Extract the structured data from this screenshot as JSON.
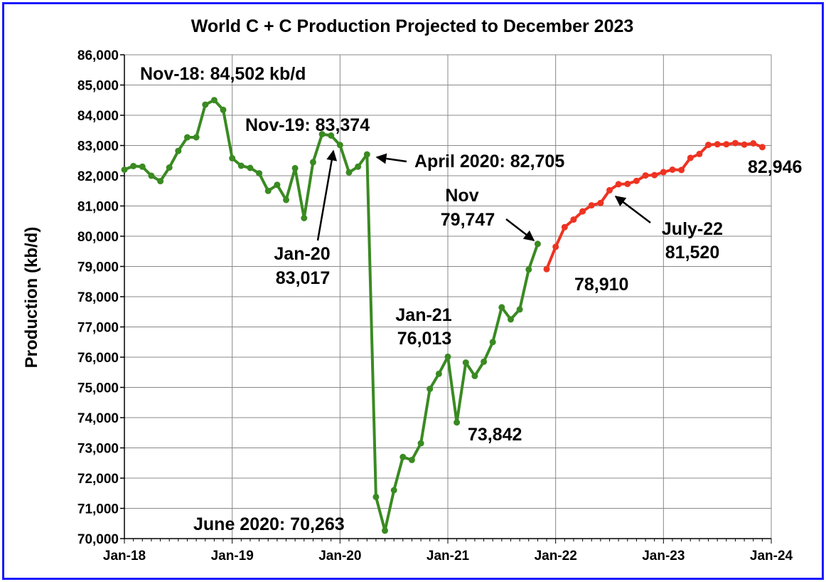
{
  "chart_data": {
    "type": "line",
    "title": "World C + C Production Projected to December 2023",
    "xlabel": "",
    "ylabel": "Production (kb/d)",
    "ylim": [
      70000,
      86000
    ],
    "yticks": [
      "70,000",
      "71,000",
      "72,000",
      "73,000",
      "74,000",
      "75,000",
      "76,000",
      "77,000",
      "78,000",
      "79,000",
      "80,000",
      "81,000",
      "82,000",
      "83,000",
      "84,000",
      "85,000",
      "86,000"
    ],
    "xticks": [
      "Jan-18",
      "Jan-19",
      "Jan-20",
      "Jan-21",
      "Jan-22",
      "Jan-23",
      "Jan-24"
    ],
    "grid": true,
    "legend": "none",
    "colors": {
      "actual": "#3a8a22",
      "projected": "#ee3322",
      "border": "#1a1aff",
      "grid": "#888888"
    },
    "series": [
      {
        "color": "#3a8a22",
        "x": [
          "2018-01",
          "2018-02",
          "2018-03",
          "2018-04",
          "2018-05",
          "2018-06",
          "2018-07",
          "2018-08",
          "2018-09",
          "2018-10",
          "2018-11",
          "2018-12",
          "2019-01",
          "2019-02",
          "2019-03",
          "2019-04",
          "2019-05",
          "2019-06",
          "2019-07",
          "2019-08",
          "2019-09",
          "2019-10",
          "2019-11",
          "2019-12",
          "2020-01",
          "2020-02",
          "2020-03",
          "2020-04",
          "2020-05",
          "2020-06",
          "2020-07",
          "2020-08",
          "2020-09",
          "2020-10",
          "2020-11",
          "2020-12",
          "2021-01",
          "2021-02",
          "2021-03",
          "2021-04",
          "2021-05",
          "2021-06",
          "2021-07",
          "2021-08",
          "2021-09",
          "2021-10",
          "2021-11"
        ],
        "values": [
          82200,
          82320,
          82300,
          82000,
          81820,
          82270,
          82820,
          83270,
          83270,
          84350,
          84502,
          84180,
          82580,
          82330,
          82260,
          82080,
          81500,
          81700,
          81200,
          82250,
          80600,
          82450,
          83374,
          83330,
          83017,
          82110,
          82300,
          82705,
          71380,
          70263,
          71600,
          72700,
          72600,
          73150,
          74950,
          75450,
          76013,
          73842,
          75820,
          75380,
          75850,
          76500,
          77650,
          77250,
          77580,
          78900,
          79747
        ]
      },
      {
        "color": "#ee3322",
        "x": [
          "2021-12",
          "2022-01",
          "2022-02",
          "2022-03",
          "2022-04",
          "2022-05",
          "2022-06",
          "2022-07",
          "2022-08",
          "2022-09",
          "2022-10",
          "2022-11",
          "2022-12",
          "2023-01",
          "2023-02",
          "2023-03",
          "2023-04",
          "2023-05",
          "2023-06",
          "2023-07",
          "2023-08",
          "2023-09",
          "2023-10",
          "2023-11",
          "2023-12"
        ],
        "values": [
          78910,
          79650,
          80300,
          80550,
          80820,
          81020,
          81100,
          81520,
          81720,
          81730,
          81830,
          82010,
          82020,
          82120,
          82200,
          82190,
          82590,
          82720,
          83020,
          83040,
          83040,
          83080,
          83030,
          83070,
          82946
        ]
      }
    ],
    "annotations": [
      {
        "text": "Nov-18: 84,502 kb/d"
      },
      {
        "text": "Nov-19: 83,374"
      },
      {
        "text": "April 2020: 82,705"
      },
      {
        "text": "Jan-20"
      },
      {
        "text": "83,017"
      },
      {
        "text": "Nov"
      },
      {
        "text": "79,747"
      },
      {
        "text": "Jan-21"
      },
      {
        "text": "76,013"
      },
      {
        "text": "73,842"
      },
      {
        "text": "June 2020: 70,263"
      },
      {
        "text": "78,910"
      },
      {
        "text": "July-22"
      },
      {
        "text": "81,520"
      },
      {
        "text": "82,946"
      }
    ]
  }
}
